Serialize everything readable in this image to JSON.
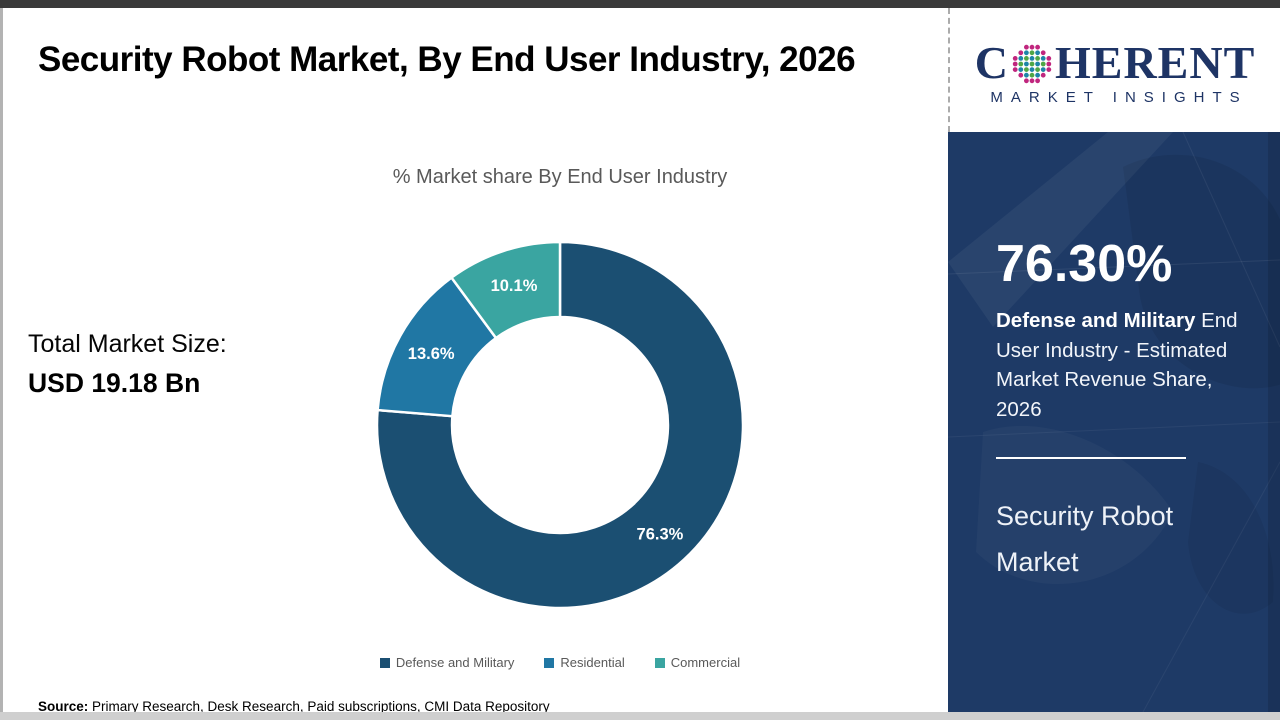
{
  "page": {
    "title": "Security Robot Market, By End User Industry, 2026"
  },
  "left_panel": {
    "market_size_label": "Total Market Size:",
    "market_size_value": "USD 19.18 Bn"
  },
  "chart_data": {
    "type": "pie",
    "subtype": "donut",
    "title": "% Market share By End User Industry",
    "unit": "%",
    "start_angle_deg": 0,
    "direction": "clockwise",
    "inner_radius_ratio": 0.59,
    "legend_position": "bottom",
    "categories": [
      "Defense and Military",
      "Residential",
      "Commercial"
    ],
    "values": [
      76.3,
      13.6,
      10.1
    ],
    "data_labels": [
      "76.3%",
      "13.6%",
      "10.1%"
    ],
    "series": [
      {
        "name": "Defense and Military",
        "value": 76.3,
        "label": "76.3%",
        "color": "#1b4f72"
      },
      {
        "name": "Residential",
        "value": 13.6,
        "label": "13.6%",
        "color": "#2077a4"
      },
      {
        "name": "Commercial",
        "value": 10.1,
        "label": "10.1%",
        "color": "#3aa5a1"
      }
    ]
  },
  "sidebar": {
    "logo": {
      "brand_prefix": "C",
      "brand_suffix": "HERENT",
      "tagline": "MARKET INSIGHTS",
      "brand_color": "#1e3465",
      "globe_colors": {
        "outer": "#c0267e",
        "teal": "#1d84a8",
        "green": "#4fa646"
      }
    },
    "panel_bg": "#1e3a66",
    "highlight_value": "76.30%",
    "highlight_bold": "Defense and Military",
    "highlight_rest": " End User Industry - Estimated Market Revenue Share,\n2026",
    "panel_title": "Security Robot Market"
  },
  "footer": {
    "source_label": "Source:",
    "source_text": " Primary Research, Desk Research, Paid subscriptions, CMI Data Repository"
  }
}
